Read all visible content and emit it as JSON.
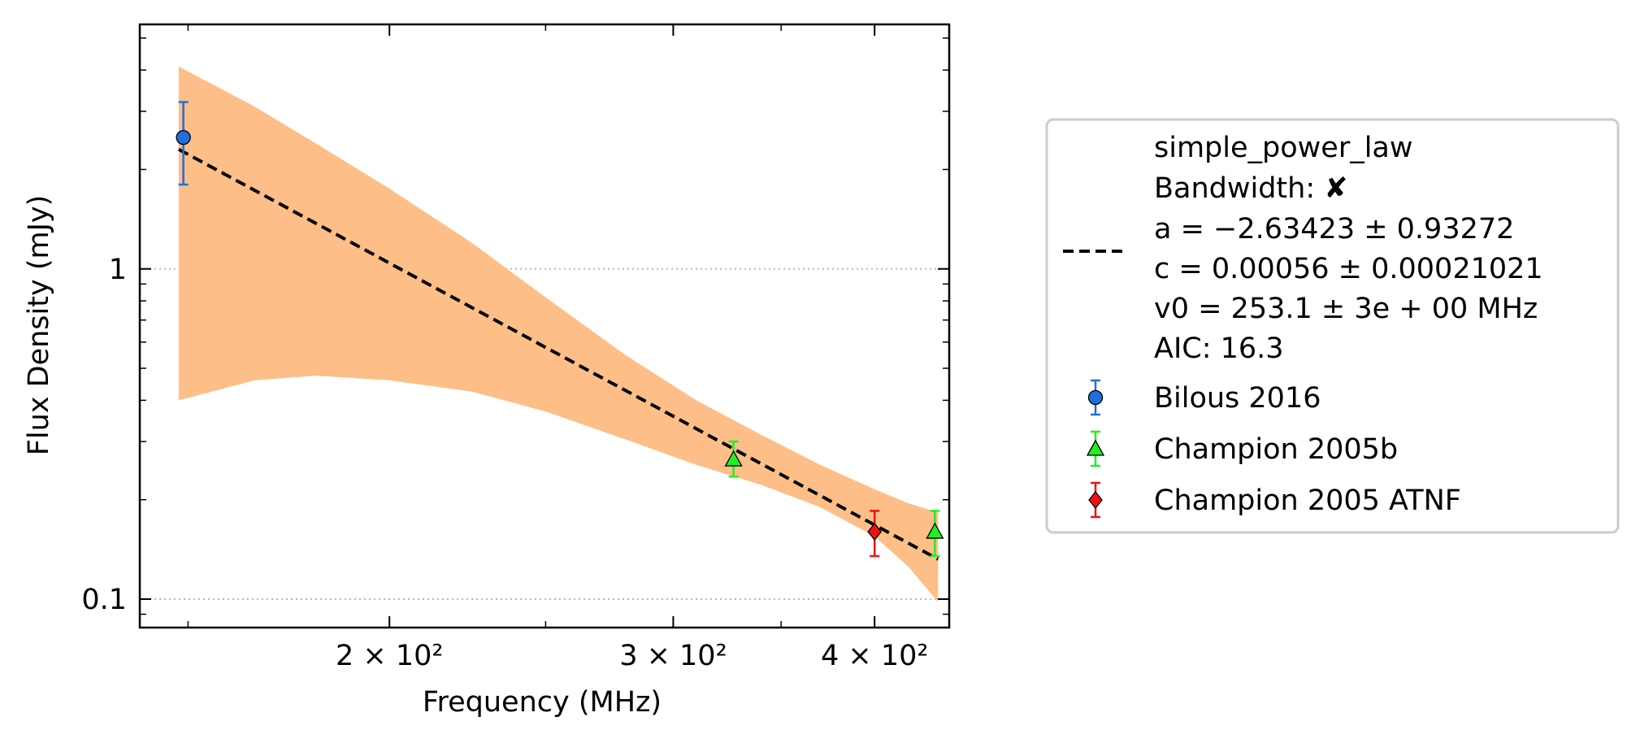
{
  "chart_data": {
    "type": "scatter",
    "xlabel": "Frequency (MHz)",
    "ylabel": "Flux Density (mJy)",
    "xscale": "log",
    "yscale": "log",
    "xlim": [
      140,
      445
    ],
    "ylim": [
      0.082,
      5.5
    ],
    "x_ticks": [
      {
        "value": 200,
        "label": "2 × 10²"
      },
      {
        "value": 300,
        "label": "3 × 10²"
      },
      {
        "value": 400,
        "label": "4 × 10²"
      }
    ],
    "y_ticks": [
      {
        "value": 1,
        "label": "1"
      },
      {
        "value": 0.1,
        "label": "0.1"
      }
    ],
    "y_grid": "dotted at major ticks",
    "legend_placement": "right, outside",
    "fit": {
      "model_name": "simple_power_law",
      "bandwidth_line": "Bandwidth: ✘",
      "a_line": "a = −2.63423 ± 0.93272",
      "c_line": "c = 0.00056 ± 0.00021021",
      "v0_line": "v0 = 253.1 ± 3e + 00 MHz",
      "aic_line": "AIC: 16.3",
      "a": -2.63423,
      "c": 0.00056,
      "v0": 253.1,
      "x_range": [
        148,
        438
      ],
      "line_style": "dashed",
      "line_color": "#000000",
      "band_color": "#fdbf87",
      "band": [
        {
          "x": 148,
          "lower": 0.4,
          "upper": 4.1
        },
        {
          "x": 165,
          "lower": 0.46,
          "upper": 3.1
        },
        {
          "x": 180,
          "lower": 0.475,
          "upper": 2.4
        },
        {
          "x": 200,
          "lower": 0.46,
          "upper": 1.75
        },
        {
          "x": 225,
          "lower": 0.425,
          "upper": 1.2
        },
        {
          "x": 250,
          "lower": 0.37,
          "upper": 0.82
        },
        {
          "x": 280,
          "lower": 0.305,
          "upper": 0.55
        },
        {
          "x": 310,
          "lower": 0.255,
          "upper": 0.4
        },
        {
          "x": 340,
          "lower": 0.222,
          "upper": 0.315
        },
        {
          "x": 370,
          "lower": 0.19,
          "upper": 0.255
        },
        {
          "x": 400,
          "lower": 0.155,
          "upper": 0.215
        },
        {
          "x": 420,
          "lower": 0.125,
          "upper": 0.195
        },
        {
          "x": 438,
          "lower": 0.098,
          "upper": 0.183
        }
      ]
    },
    "series": [
      {
        "name": "Bilous 2016",
        "marker": "circle",
        "fill": "#1f6fdc",
        "err_color": "#1f6fdc",
        "points": [
          {
            "x": 149,
            "y": 2.5,
            "err_low": 0.7,
            "err_high": 0.7
          }
        ]
      },
      {
        "name": "Champion 2005b",
        "marker": "triangle",
        "fill": "#22ee22",
        "err_color": "#22ee22",
        "points": [
          {
            "x": 327,
            "y": 0.265,
            "err_low": 0.03,
            "err_high": 0.035
          },
          {
            "x": 436,
            "y": 0.16,
            "err_low": 0.025,
            "err_high": 0.025
          }
        ]
      },
      {
        "name": "Champion 2005 ATNF",
        "marker": "diamond",
        "fill": "#ee1111",
        "err_color": "#ee1111",
        "points": [
          {
            "x": 400,
            "y": 0.16,
            "err_low": 0.025,
            "err_high": 0.025
          }
        ]
      }
    ]
  }
}
